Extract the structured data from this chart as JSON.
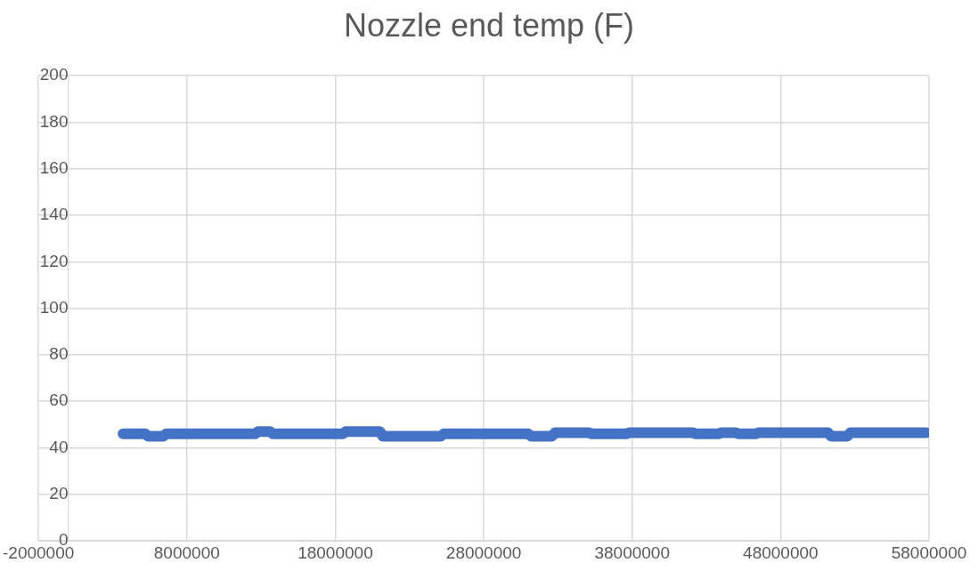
{
  "chart_data": {
    "type": "line",
    "title": "Nozzle end temp (F)",
    "x": [
      3700000,
      5200000,
      5400000,
      6400000,
      6600000,
      12600000,
      12800000,
      13600000,
      13800000,
      18500000,
      18700000,
      21000000,
      21200000,
      25100000,
      25300000,
      31000000,
      31200000,
      32600000,
      32800000,
      35100000,
      35300000,
      37600000,
      37800000,
      42100000,
      42300000,
      43800000,
      44000000,
      45000000,
      45200000,
      46300000,
      46500000,
      51200000,
      51400000,
      52500000,
      52700000,
      57800000
    ],
    "series": [
      {
        "color": "#4472c4",
        "values": [
          46,
          46,
          45,
          45,
          46,
          46,
          47,
          47,
          46,
          46,
          47,
          47,
          45,
          45,
          46,
          46,
          45,
          45,
          46.5,
          46.5,
          46,
          46,
          46.5,
          46.5,
          46,
          46,
          46.5,
          46.5,
          46,
          46,
          46.5,
          46.5,
          45,
          45,
          46.5,
          46.5
        ]
      }
    ],
    "xlim": [
      -2000000,
      58000000
    ],
    "xticks": [
      -2000000,
      8000000,
      18000000,
      28000000,
      38000000,
      48000000,
      58000000
    ],
    "ylim": [
      0,
      200
    ],
    "yticks": [
      0,
      20,
      40,
      60,
      80,
      100,
      120,
      140,
      160,
      180,
      200
    ],
    "grid": true,
    "legend": false,
    "marker": "none",
    "line_style": "solid"
  }
}
